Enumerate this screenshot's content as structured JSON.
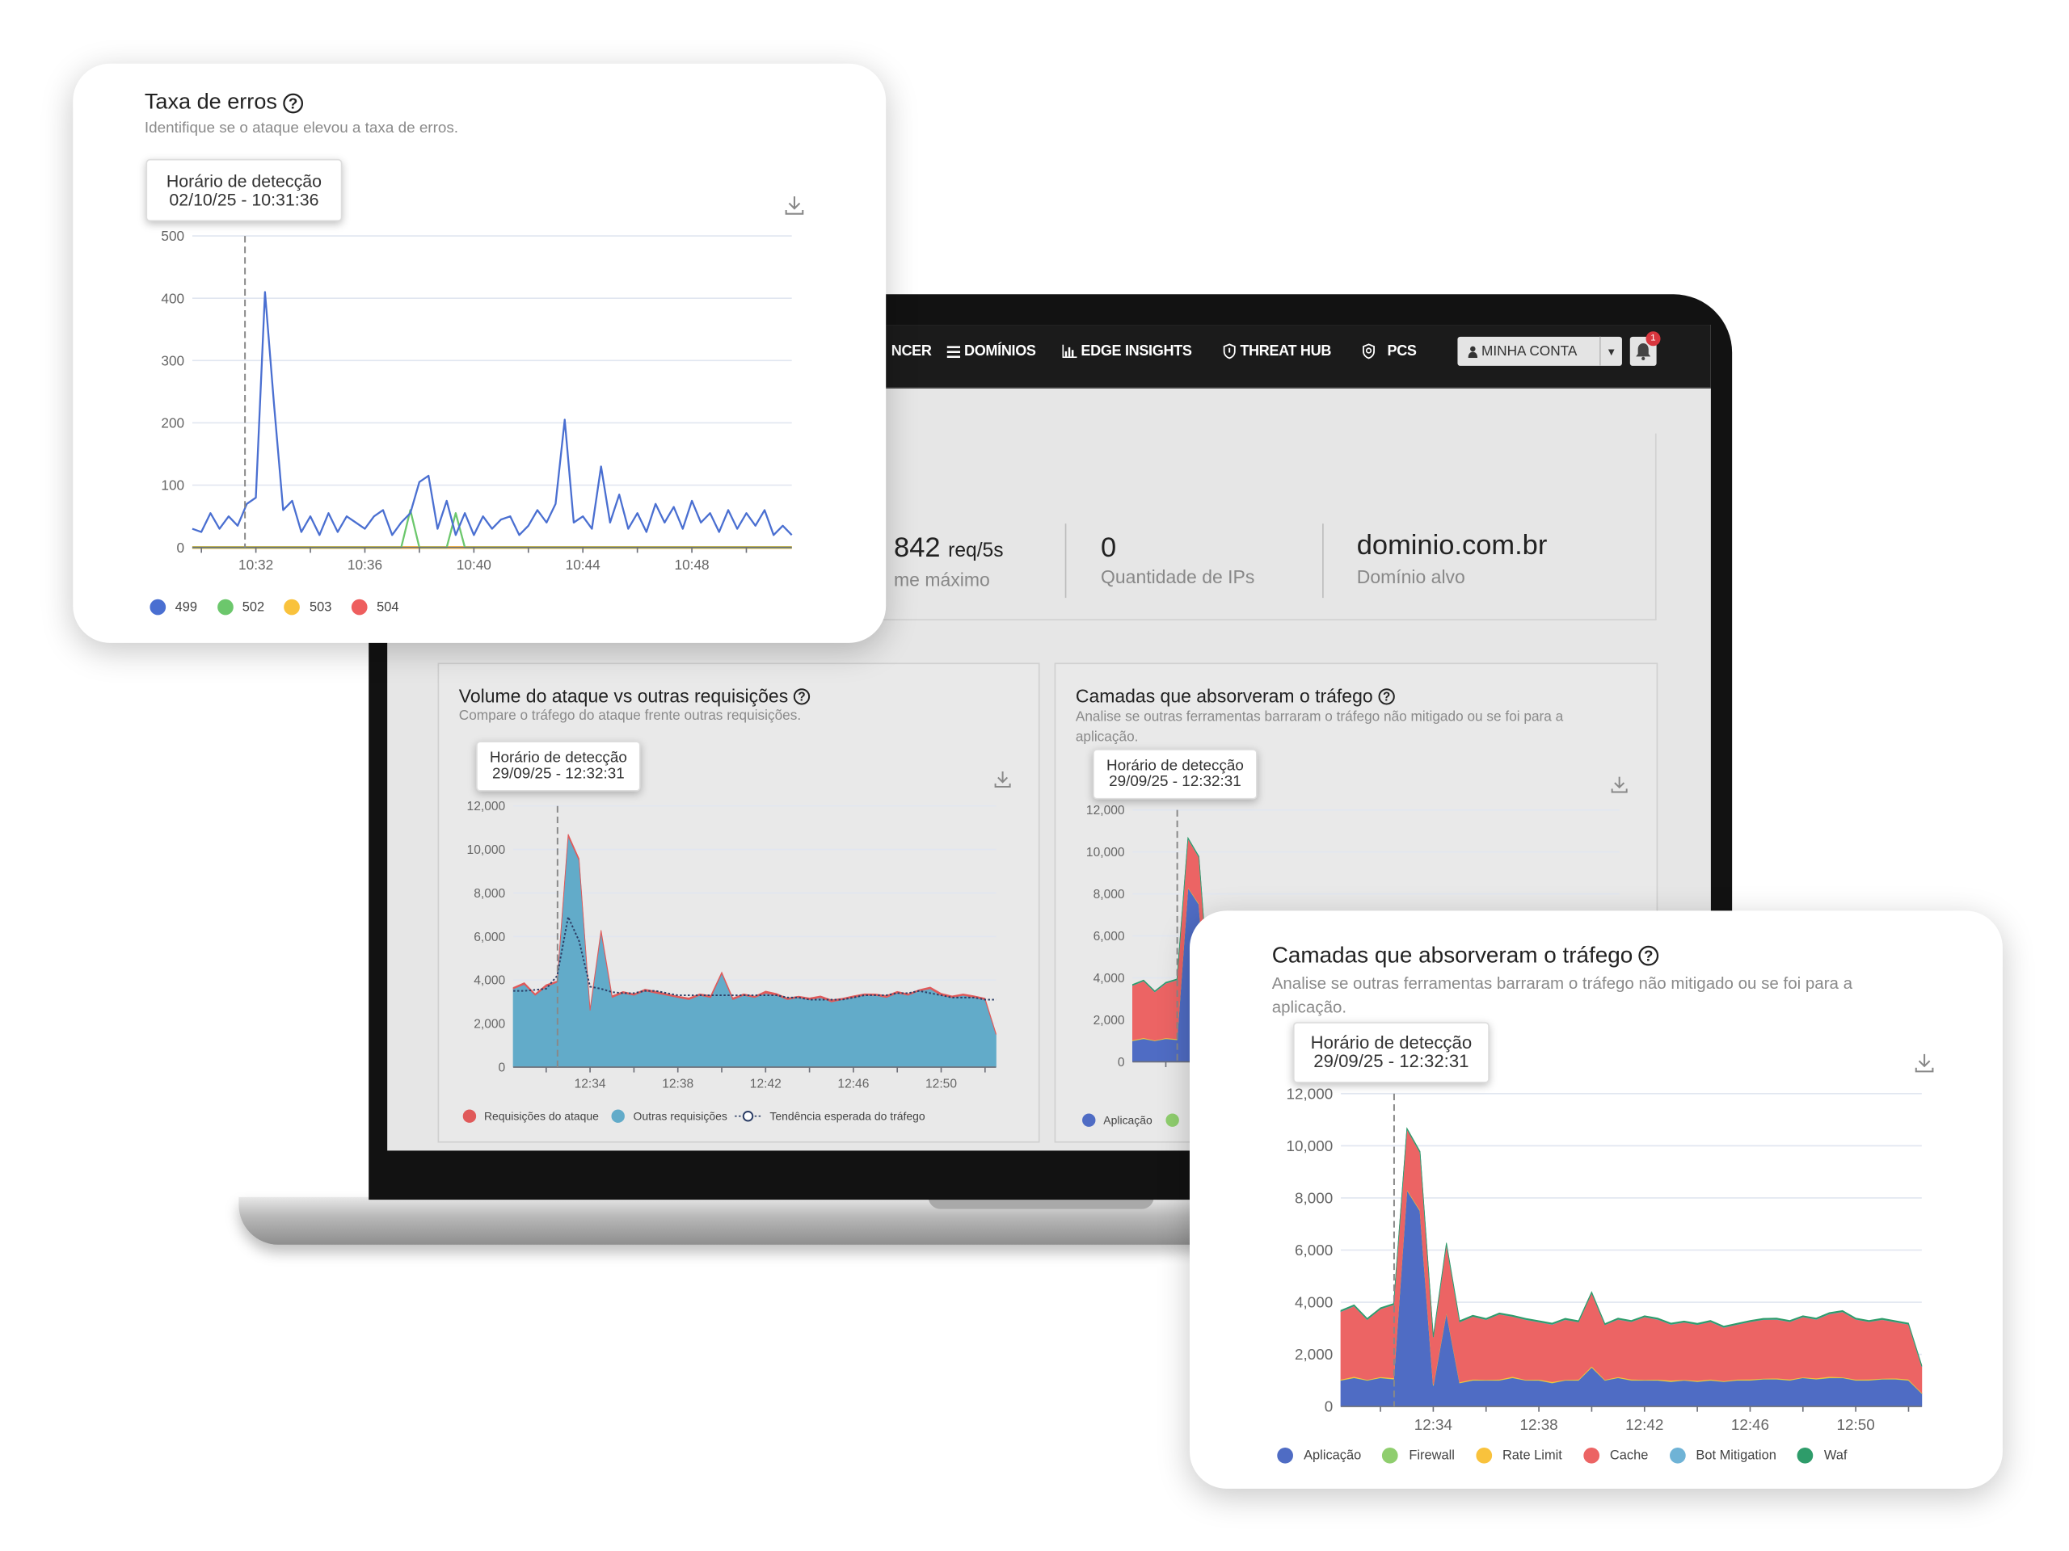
{
  "nav": {
    "items": [
      {
        "label": "NCER",
        "icon": "none"
      },
      {
        "label": "DOMÍNIOS",
        "icon": "list-icon"
      },
      {
        "label": "EDGE INSIGHTS",
        "icon": "bar-chart-icon"
      },
      {
        "label": "THREAT HUB",
        "icon": "shield-icon"
      },
      {
        "label": "PCS",
        "icon": "shield-search-icon"
      }
    ],
    "account_label": "MINHA CONTA",
    "notification_count": "1"
  },
  "stats": {
    "peak_value": "842",
    "peak_unit": "req/5s",
    "peak_label": "me máximo",
    "ip_count": "0",
    "ip_label": "Quantidade de IPs",
    "domain": "dominio.com.br",
    "domain_label": "Domínio alvo"
  },
  "cards": {
    "errors": {
      "title": "Taxa de erros",
      "subtitle": "Identifique se o ataque elevou a taxa de erros.",
      "tooltip_title": "Horário de detecção",
      "tooltip_time": "02/10/25 - 10:31:36"
    },
    "volume": {
      "title": "Volume do ataque vs outras requisições",
      "subtitle": "Compare o tráfego do ataque frente outras requisições.",
      "tooltip_title": "Horário de detecção",
      "tooltip_time": "29/09/25 - 12:32:31"
    },
    "layers": {
      "title": "Camadas que absorveram o tráfego",
      "subtitle": "Analise se outras ferramentas barraram o tráfego não mitigado ou se foi para a aplicação.",
      "tooltip_title": "Horário de detecção",
      "tooltip_time": "29/09/25 - 12:32:31"
    }
  },
  "chart_data": [
    {
      "type": "line",
      "title": "Taxa de erros",
      "detection_time": "10:31:36",
      "x_range": [
        "10:29:40",
        "10:51:40"
      ],
      "x_ticks": [
        "10:32",
        "10:36",
        "10:40",
        "10:44",
        "10:48"
      ],
      "y_range": [
        0,
        500
      ],
      "y_ticks": [
        0,
        100,
        200,
        300,
        400,
        500
      ],
      "grid": true,
      "legend_position": "bottom-left",
      "x": [
        "10:29:40",
        "10:30:00",
        "10:30:20",
        "10:30:40",
        "10:31:00",
        "10:31:20",
        "10:31:40",
        "10:32:00",
        "10:32:20",
        "10:32:40",
        "10:33:00",
        "10:33:20",
        "10:33:40",
        "10:34:00",
        "10:34:20",
        "10:34:40",
        "10:35:00",
        "10:35:20",
        "10:35:40",
        "10:36:00",
        "10:36:20",
        "10:36:40",
        "10:37:00",
        "10:37:20",
        "10:37:40",
        "10:38:00",
        "10:38:20",
        "10:38:40",
        "10:39:00",
        "10:39:20",
        "10:39:40",
        "10:40:00",
        "10:40:20",
        "10:40:40",
        "10:41:00",
        "10:41:20",
        "10:41:40",
        "10:42:00",
        "10:42:20",
        "10:42:40",
        "10:43:00",
        "10:43:20",
        "10:43:40",
        "10:44:00",
        "10:44:20",
        "10:44:40",
        "10:45:00",
        "10:45:20",
        "10:45:40",
        "10:46:00",
        "10:46:20",
        "10:46:40",
        "10:47:00",
        "10:47:20",
        "10:47:40",
        "10:48:00",
        "10:48:20",
        "10:48:40",
        "10:49:00",
        "10:49:20",
        "10:49:40",
        "10:50:00",
        "10:50:20",
        "10:50:40",
        "10:51:00",
        "10:51:20",
        "10:51:40"
      ],
      "series": [
        {
          "name": "499",
          "color": "#4a6fd1",
          "values": [
            30,
            25,
            55,
            30,
            50,
            35,
            70,
            80,
            410,
            230,
            60,
            75,
            25,
            50,
            20,
            55,
            25,
            50,
            40,
            30,
            50,
            60,
            20,
            40,
            55,
            105,
            115,
            30,
            75,
            20,
            55,
            20,
            50,
            30,
            45,
            50,
            20,
            35,
            60,
            40,
            70,
            205,
            40,
            50,
            30,
            130,
            40,
            85,
            30,
            55,
            25,
            70,
            40,
            65,
            30,
            75,
            40,
            55,
            25,
            60,
            30,
            55,
            35,
            60,
            20,
            35,
            20
          ]
        },
        {
          "name": "502",
          "color": "#6cc76c",
          "values": [
            0,
            0,
            0,
            0,
            0,
            0,
            0,
            0,
            0,
            0,
            0,
            0,
            0,
            0,
            0,
            0,
            0,
            0,
            0,
            0,
            0,
            0,
            0,
            0,
            60,
            0,
            0,
            0,
            0,
            55,
            0,
            0,
            0,
            0,
            0,
            0,
            0,
            0,
            0,
            0,
            0,
            0,
            0,
            0,
            0,
            0,
            0,
            0,
            0,
            0,
            0,
            0,
            0,
            0,
            0,
            0,
            0,
            0,
            0,
            0,
            0,
            0,
            0,
            0,
            0,
            0,
            0
          ]
        },
        {
          "name": "503",
          "color": "#f9c23c",
          "values": [
            0,
            0,
            0,
            0,
            0,
            0,
            0,
            0,
            0,
            0,
            0,
            0,
            0,
            0,
            0,
            0,
            0,
            0,
            0,
            0,
            0,
            0,
            0,
            0,
            0,
            0,
            0,
            0,
            0,
            0,
            0,
            0,
            0,
            0,
            0,
            0,
            0,
            0,
            0,
            0,
            0,
            0,
            0,
            0,
            0,
            0,
            0,
            0,
            0,
            0,
            0,
            0,
            0,
            0,
            0,
            0,
            0,
            0,
            0,
            0,
            0,
            0,
            0,
            0,
            0,
            0,
            0
          ]
        },
        {
          "name": "504",
          "color": "#ee5e5e",
          "values": [
            0,
            0,
            0,
            0,
            0,
            0,
            0,
            0,
            0,
            0,
            0,
            0,
            0,
            0,
            0,
            0,
            0,
            0,
            0,
            0,
            0,
            0,
            0,
            0,
            0,
            0,
            0,
            0,
            0,
            0,
            0,
            0,
            0,
            0,
            0,
            0,
            0,
            0,
            0,
            0,
            0,
            0,
            0,
            0,
            0,
            0,
            0,
            0,
            0,
            0,
            0,
            0,
            0,
            0,
            0,
            0,
            0,
            0,
            0,
            0,
            0,
            0,
            0,
            0,
            0,
            0,
            0
          ]
        }
      ]
    },
    {
      "type": "area",
      "stacked": true,
      "title": "Volume do ataque vs outras requisições",
      "detection_time": "12:32:31",
      "x_range": [
        "12:30:30",
        "12:52:30"
      ],
      "x_ticks": [
        "12:34",
        "12:38",
        "12:42",
        "12:46",
        "12:50"
      ],
      "y_range": [
        0,
        12000
      ],
      "y_ticks": [
        0,
        2000,
        4000,
        6000,
        8000,
        10000,
        12000
      ],
      "grid": true,
      "legend_position": "bottom-left",
      "x": [
        "12:30:30",
        "12:31:00",
        "12:31:30",
        "12:32:00",
        "12:32:30",
        "12:33:00",
        "12:33:30",
        "12:34:00",
        "12:34:30",
        "12:35:00",
        "12:35:30",
        "12:36:00",
        "12:36:30",
        "12:37:00",
        "12:37:30",
        "12:38:00",
        "12:38:30",
        "12:39:00",
        "12:39:30",
        "12:40:00",
        "12:40:30",
        "12:41:00",
        "12:41:30",
        "12:42:00",
        "12:42:30",
        "12:43:00",
        "12:43:30",
        "12:44:00",
        "12:44:30",
        "12:45:00",
        "12:45:30",
        "12:46:00",
        "12:46:30",
        "12:47:00",
        "12:47:30",
        "12:48:00",
        "12:48:30",
        "12:49:00",
        "12:49:30",
        "12:50:00",
        "12:50:30",
        "12:51:00",
        "12:51:30",
        "12:52:00",
        "12:52:30"
      ],
      "series": [
        {
          "name": "Outras requisições",
          "color": "#62abc9",
          "values": [
            3600,
            3800,
            3300,
            3700,
            3900,
            10600,
            9500,
            2600,
            6200,
            3200,
            3400,
            3300,
            3500,
            3400,
            3300,
            3200,
            3100,
            3300,
            3200,
            4300,
            3100,
            3300,
            3200,
            3400,
            3300,
            3100,
            3200,
            3100,
            3200,
            3000,
            3100,
            3200,
            3300,
            3300,
            3200,
            3400,
            3300,
            3500,
            3600,
            3300,
            3200,
            3300,
            3200,
            3100,
            1500
          ]
        },
        {
          "name": "Requisições do ataque",
          "color": "#e05a5a",
          "values": [
            60,
            80,
            70,
            90,
            60,
            100,
            80,
            60,
            90,
            80,
            70,
            60,
            80,
            90,
            70,
            60,
            80,
            70,
            90,
            60,
            80,
            70,
            60,
            90,
            80,
            70,
            60,
            80,
            70,
            90,
            60,
            80,
            70,
            60,
            90,
            80,
            70,
            60,
            80,
            90,
            70,
            60,
            80,
            70,
            40
          ]
        }
      ],
      "trend": {
        "name": "Tendência esperada do tráfego",
        "color": "#2c3e66",
        "values": [
          3500,
          3500,
          3550,
          3600,
          4200,
          6900,
          5800,
          3700,
          3600,
          3450,
          3400,
          3400,
          3500,
          3500,
          3400,
          3300,
          3300,
          3300,
          3300,
          3300,
          3300,
          3300,
          3300,
          3300,
          3300,
          3200,
          3200,
          3100,
          3100,
          3100,
          3100,
          3200,
          3300,
          3300,
          3300,
          3400,
          3400,
          3500,
          3400,
          3300,
          3200,
          3200,
          3200,
          3100,
          3100
        ]
      }
    },
    {
      "type": "area",
      "stacked": true,
      "title": "Camadas que absorveram o tráfego",
      "detection_time": "12:32:31",
      "x_range": [
        "12:30:30",
        "12:52:30"
      ],
      "x_ticks": [
        "12:34",
        "12:38",
        "12:42",
        "12:46",
        "12:50"
      ],
      "y_range": [
        0,
        12000
      ],
      "y_ticks": [
        0,
        2000,
        4000,
        6000,
        8000,
        10000,
        12000
      ],
      "grid": true,
      "legend_position": "bottom-left",
      "x": [
        "12:30:30",
        "12:31:00",
        "12:31:30",
        "12:32:00",
        "12:32:30",
        "12:33:00",
        "12:33:30",
        "12:34:00",
        "12:34:30",
        "12:35:00",
        "12:35:30",
        "12:36:00",
        "12:36:30",
        "12:37:00",
        "12:37:30",
        "12:38:00",
        "12:38:30",
        "12:39:00",
        "12:39:30",
        "12:40:00",
        "12:40:30",
        "12:41:00",
        "12:41:30",
        "12:42:00",
        "12:42:30",
        "12:43:00",
        "12:43:30",
        "12:44:00",
        "12:44:30",
        "12:45:00",
        "12:45:30",
        "12:46:00",
        "12:46:30",
        "12:47:00",
        "12:47:30",
        "12:48:00",
        "12:48:30",
        "12:49:00",
        "12:49:30",
        "12:50:00",
        "12:50:30",
        "12:51:00",
        "12:51:30",
        "12:52:00",
        "12:52:30"
      ],
      "series": [
        {
          "name": "Aplicação",
          "color": "#4f6cc4",
          "values": [
            1000,
            1100,
            1000,
            1100,
            1050,
            8300,
            7500,
            800,
            3600,
            900,
            1000,
            1000,
            1000,
            1100,
            1000,
            1000,
            900,
            1000,
            1000,
            1500,
            1000,
            1100,
            1000,
            1000,
            1000,
            950,
            1000,
            950,
            1000,
            950,
            1000,
            1000,
            1050,
            1050,
            1000,
            1100,
            1050,
            1100,
            1100,
            1000,
            1000,
            1050,
            1050,
            1000,
            500
          ]
        },
        {
          "name": "Firewall",
          "color": "#8fce6e",
          "values": [
            10,
            10,
            10,
            10,
            10,
            10,
            10,
            10,
            10,
            10,
            10,
            10,
            10,
            10,
            10,
            10,
            10,
            10,
            10,
            10,
            10,
            10,
            10,
            10,
            10,
            10,
            10,
            10,
            10,
            10,
            10,
            10,
            10,
            10,
            10,
            10,
            10,
            10,
            10,
            10,
            10,
            10,
            10,
            10,
            10
          ]
        },
        {
          "name": "Rate Limit",
          "color": "#f9c23c",
          "values": [
            30,
            40,
            20,
            30,
            40,
            20,
            30,
            40,
            20,
            30,
            40,
            20,
            30,
            40,
            20,
            30,
            40,
            20,
            30,
            40,
            20,
            30,
            40,
            20,
            30,
            40,
            20,
            30,
            40,
            20,
            30,
            40,
            20,
            30,
            40,
            20,
            30,
            40,
            20,
            30,
            40,
            20,
            30,
            40,
            20
          ]
        },
        {
          "name": "Cache",
          "color": "#ec6464",
          "values": [
            2600,
            2700,
            2300,
            2600,
            2800,
            2300,
            2200,
            1800,
            2600,
            2300,
            2400,
            2300,
            2500,
            2300,
            2300,
            2200,
            2200,
            2300,
            2200,
            2800,
            2100,
            2200,
            2200,
            2400,
            2300,
            2150,
            2200,
            2150,
            2200,
            2050,
            2100,
            2200,
            2250,
            2250,
            2200,
            2300,
            2250,
            2400,
            2500,
            2300,
            2200,
            2250,
            2150,
            2100,
            1000
          ]
        },
        {
          "name": "Bot Mitigation",
          "color": "#6fb3d6",
          "values": [
            10,
            10,
            10,
            10,
            10,
            10,
            10,
            10,
            10,
            10,
            10,
            10,
            10,
            10,
            10,
            10,
            10,
            10,
            10,
            10,
            10,
            10,
            10,
            10,
            10,
            10,
            10,
            10,
            10,
            10,
            10,
            10,
            10,
            10,
            10,
            10,
            10,
            10,
            10,
            10,
            10,
            10,
            10,
            10,
            10
          ]
        },
        {
          "name": "Waf",
          "color": "#2e9c6a",
          "values": [
            40,
            40,
            40,
            40,
            40,
            40,
            40,
            40,
            40,
            40,
            40,
            40,
            40,
            40,
            40,
            40,
            40,
            40,
            40,
            40,
            40,
            40,
            40,
            40,
            40,
            40,
            40,
            40,
            40,
            40,
            40,
            40,
            40,
            40,
            40,
            40,
            40,
            40,
            40,
            40,
            40,
            40,
            40,
            40,
            40
          ]
        }
      ]
    }
  ]
}
